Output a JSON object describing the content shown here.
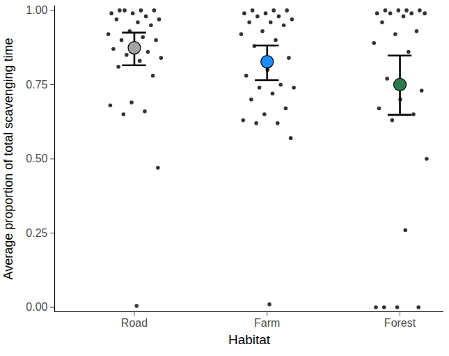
{
  "chart_data": {
    "type": "scatter",
    "x_label": "Habitat",
    "y_label": "Average proportion of total scavenging time",
    "categories": [
      "Road",
      "Farm",
      "Forest"
    ],
    "values": [
      0.874,
      0.827,
      0.75
    ],
    "error_low": [
      0.815,
      0.765,
      0.648
    ],
    "error_high": [
      0.925,
      0.882,
      0.848
    ],
    "colors": [
      "#a3a3a3",
      "#1b8fff",
      "#2a7a4b"
    ],
    "points": [
      [
        1.0,
        1.0,
        1.0,
        0.99,
        0.99,
        0.98,
        1.0,
        0.97,
        0.96,
        0.97,
        0.95,
        0.93,
        0.92,
        0.91,
        0.9,
        0.9,
        0.88,
        0.87,
        0.86,
        0.85,
        0.84,
        0.83,
        0.81,
        0.78,
        0.69,
        0.68,
        0.66,
        0.65,
        0.47,
        0.005
      ],
      [
        1.0,
        1.0,
        1.0,
        0.99,
        0.99,
        0.98,
        0.98,
        0.97,
        0.96,
        0.96,
        0.95,
        0.93,
        0.92,
        0.9,
        0.88,
        0.84,
        0.8,
        0.78,
        0.75,
        0.74,
        0.74,
        0.72,
        0.7,
        0.67,
        0.65,
        0.63,
        0.62,
        0.62,
        0.57,
        0.01
      ],
      [
        1.0,
        1.0,
        1.0,
        1.0,
        0.99,
        0.99,
        0.99,
        0.99,
        0.98,
        0.96,
        0.93,
        0.92,
        0.89,
        0.86,
        0.77,
        0.73,
        0.7,
        0.67,
        0.65,
        0.63,
        0.5,
        0.26,
        0.0,
        0.0,
        0.0,
        0.0
      ]
    ],
    "ylim": [
      -0.015,
      1.015
    ],
    "yticks": [
      {
        "value": 0,
        "label": "0.00"
      },
      {
        "value": 0.25,
        "label": "0.25"
      },
      {
        "value": 0.5,
        "label": "0.50"
      },
      {
        "value": 0.75,
        "label": "0.75"
      },
      {
        "value": 1,
        "label": "1.00"
      }
    ],
    "grid": false
  }
}
